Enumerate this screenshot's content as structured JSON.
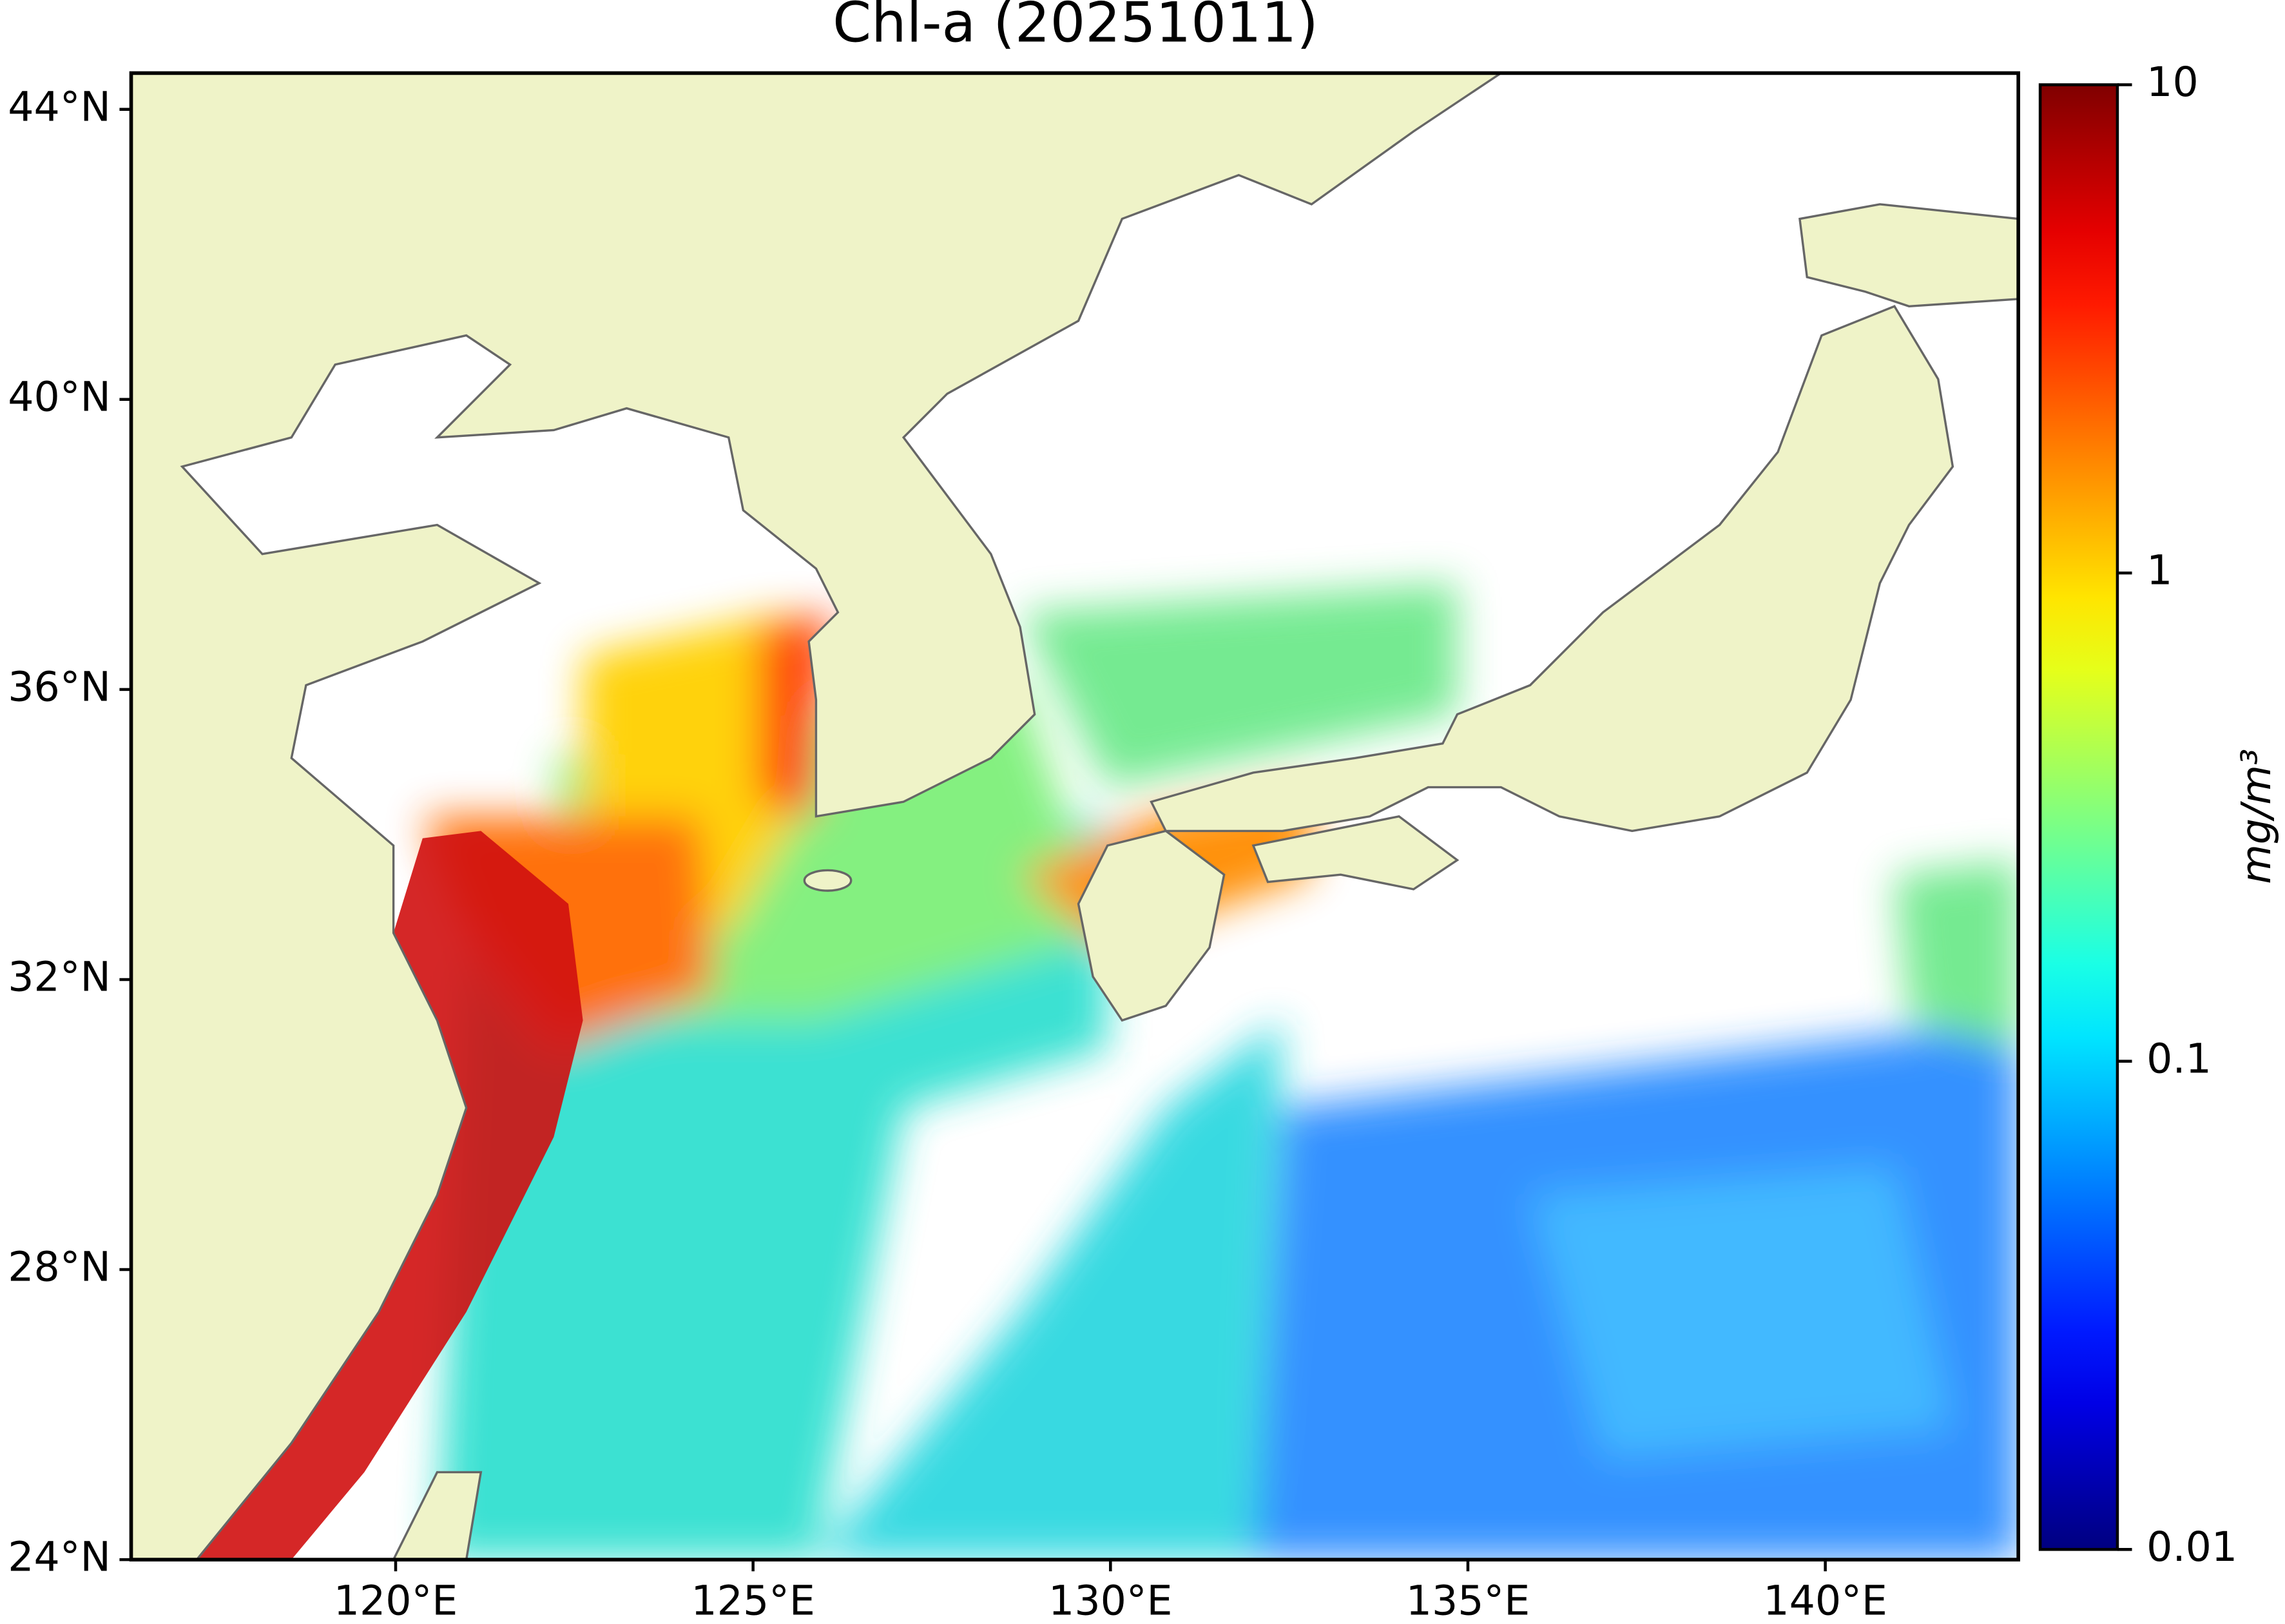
{
  "chart_data": {
    "type": "map",
    "title": "Chl-a (20251011)",
    "xlim": [
      116.3,
      142.7
    ],
    "ylim": [
      24,
      44.5
    ],
    "xticks": [
      {
        "value": 120,
        "label": "120°E"
      },
      {
        "value": 125,
        "label": "125°E"
      },
      {
        "value": 130,
        "label": "130°E"
      },
      {
        "value": 135,
        "label": "135°E"
      },
      {
        "value": 140,
        "label": "140°E"
      }
    ],
    "yticks": [
      {
        "value": 24,
        "label": "24°N"
      },
      {
        "value": 28,
        "label": "28°N"
      },
      {
        "value": 32,
        "label": "32°N"
      },
      {
        "value": 36,
        "label": "36°N"
      },
      {
        "value": 40,
        "label": "40°N"
      },
      {
        "value": 44,
        "label": "44°N"
      }
    ],
    "colorbar": {
      "label": "mg/m³",
      "log_scale": true,
      "colormap": "jet",
      "lim": [
        0.01,
        10
      ],
      "ticks": [
        0.01,
        0.1,
        1,
        10
      ]
    }
  }
}
